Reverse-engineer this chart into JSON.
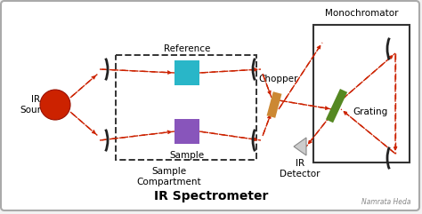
{
  "title": "IR Spectrometer",
  "bg_color": "#f2f2f2",
  "beam_color": "#cc2200",
  "source_color": "#cc2200",
  "reference_color": "#29b6c8",
  "sample_color": "#8855bb",
  "chopper_color": "#cc8833",
  "grating_color": "#558822",
  "mirror_color": "#222222",
  "box_color": "#333333",
  "label_ir_source": "IR\nSource",
  "label_reference": "Reference",
  "label_sample": "Sample",
  "label_sample_comp": "Sample\nCompartment",
  "label_chopper": "Chopper",
  "label_ir_detector": "IR\nDetector",
  "label_monochromator": "Monochromator",
  "label_grating": "Grating",
  "label_credit": "Namrata Heda",
  "figsize": [
    4.74,
    2.41
  ],
  "dpi": 100
}
